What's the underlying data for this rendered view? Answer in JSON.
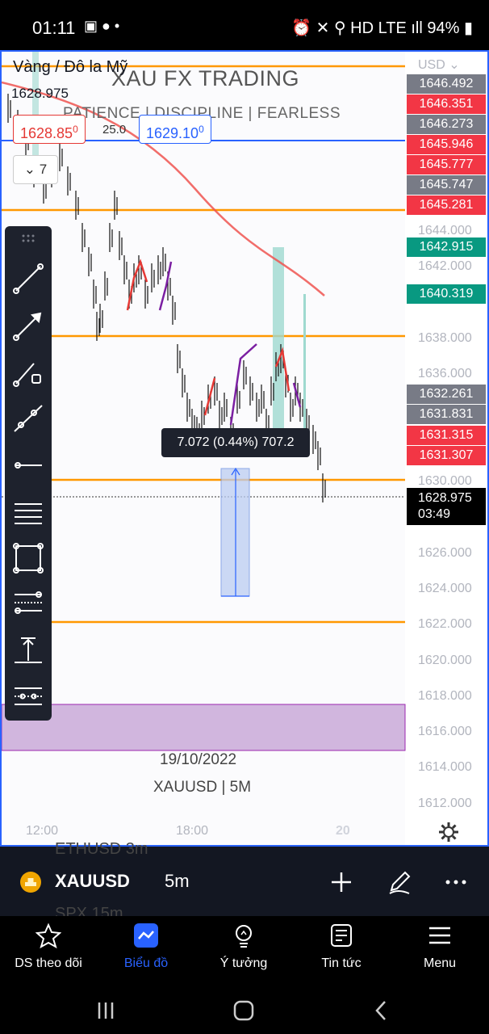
{
  "status_bar": {
    "time": "01:11",
    "battery": "94%",
    "icons_left": "▣ ● •",
    "icons_right": "⏰ ✕ ⚲ HD LTE ıll"
  },
  "chart": {
    "symbol": "Vàng / Đô la Mỹ",
    "price": "1628.975",
    "watermark_title": "XAU FX TRADING",
    "watermark_sub": "PATIENCE | DISCIPLINE | FEARLESS",
    "sell_price": "1628.85",
    "sell_price_sup": "0",
    "buy_price": "1629.10",
    "buy_price_sup": "0",
    "spread": "25.0",
    "collapse_count": "7",
    "currency": "USD",
    "measure_label": "7.072 (0.44%) 707.2",
    "date_label": "19/10/2022",
    "pair_label": "XAUUSD | 5M",
    "time_axis": [
      "12:00",
      "18:00",
      "20"
    ],
    "current_price": "1628.975",
    "countdown": "03:49",
    "price_axis": [
      {
        "label": "1644.000",
        "value": 1644
      },
      {
        "label": "1642.000",
        "value": 1642
      },
      {
        "label": "1638.000",
        "value": 1638
      },
      {
        "label": "1636.000",
        "value": 1636
      },
      {
        "label": "1630.000",
        "value": 1630
      },
      {
        "label": "1626.000",
        "value": 1626
      },
      {
        "label": "1624.000",
        "value": 1624
      },
      {
        "label": "1622.000",
        "value": 1622
      },
      {
        "label": "1620.000",
        "value": 1620
      },
      {
        "label": "1618.000",
        "value": 1618
      },
      {
        "label": "1616.000",
        "value": 1616
      },
      {
        "label": "1614.000",
        "value": 1614
      },
      {
        "label": "1612.000",
        "value": 1612
      }
    ],
    "price_tags": [
      {
        "label": "1646.492",
        "value": 1646.492,
        "color": "#787b86"
      },
      {
        "label": "1646.351",
        "value": 1646.351,
        "color": "#f23645"
      },
      {
        "label": "1646.273",
        "value": 1646.273,
        "color": "#787b86"
      },
      {
        "label": "1645.946",
        "value": 1645.946,
        "color": "#f23645"
      },
      {
        "label": "1645.777",
        "value": 1645.777,
        "color": "#f23645"
      },
      {
        "label": "1645.747",
        "value": 1645.747,
        "color": "#787b86"
      },
      {
        "label": "1645.281",
        "value": 1645.281,
        "color": "#f23645"
      },
      {
        "label": "1642.915",
        "value": 1642.915,
        "color": "#089981"
      },
      {
        "label": "1640.319",
        "value": 1640.319,
        "color": "#089981"
      },
      {
        "label": "1632.261",
        "value": 1632.261,
        "color": "#787b86"
      },
      {
        "label": "1631.831",
        "value": 1631.831,
        "color": "#787b86"
      },
      {
        "label": "1631.315",
        "value": 1631.315,
        "color": "#f23645"
      },
      {
        "label": "1631.307",
        "value": 1631.307,
        "color": "#f23645"
      }
    ],
    "horizontal_levels": [
      1645.5,
      1646.0,
      1644.1,
      1638.0,
      1630.0,
      1622.0
    ],
    "tools": [
      "trend-line-icon",
      "arrow-icon",
      "ray-icon",
      "extended-line-icon",
      "horizontal-line-icon",
      "parallel-channel-icon",
      "rectangle-icon",
      "fib-retracement-icon",
      "long-position-icon",
      "pitchfork-icon"
    ]
  },
  "symbol_bar": {
    "symbol": "XAUUSD",
    "interval": "5m",
    "ghost_above": "ETHUSD   3m",
    "ghost_below": "SPX        15m"
  },
  "nav": [
    {
      "label": "DS theo dõi",
      "icon": "star-icon"
    },
    {
      "label": "Biểu đồ",
      "icon": "chart-icon"
    },
    {
      "label": "Ý tưởng",
      "icon": "lightbulb-icon"
    },
    {
      "label": "Tin tức",
      "icon": "news-icon"
    },
    {
      "label": "Menu",
      "icon": "menu-icon"
    }
  ]
}
